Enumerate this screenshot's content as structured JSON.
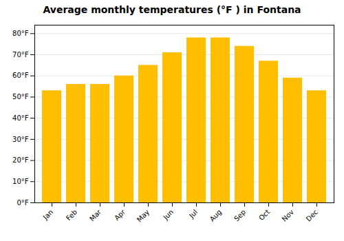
{
  "chart_data": {
    "type": "bar",
    "title": "Average monthly temperatures (°F ) in Fontana",
    "categories": [
      "Jan",
      "Feb",
      "Mar",
      "Apr",
      "May",
      "Jun",
      "Jul",
      "Aug",
      "Sep",
      "Oct",
      "Nov",
      "Dec"
    ],
    "values": [
      53,
      56,
      56,
      60,
      65,
      71,
      78,
      78,
      74,
      67,
      59,
      53
    ],
    "color": "#FFBE00",
    "ylim": [
      0,
      84
    ],
    "yticks": [
      {
        "value": 0,
        "label": "0°F"
      },
      {
        "value": 10,
        "label": "10°F"
      },
      {
        "value": 20,
        "label": "20°F"
      },
      {
        "value": 30,
        "label": "30°F"
      },
      {
        "value": 40,
        "label": "40°F"
      },
      {
        "value": 50,
        "label": "50°F"
      },
      {
        "value": 60,
        "label": "60°F"
      },
      {
        "value": 70,
        "label": "70°F"
      },
      {
        "value": 80,
        "label": "80°F"
      }
    ],
    "grid": true
  }
}
